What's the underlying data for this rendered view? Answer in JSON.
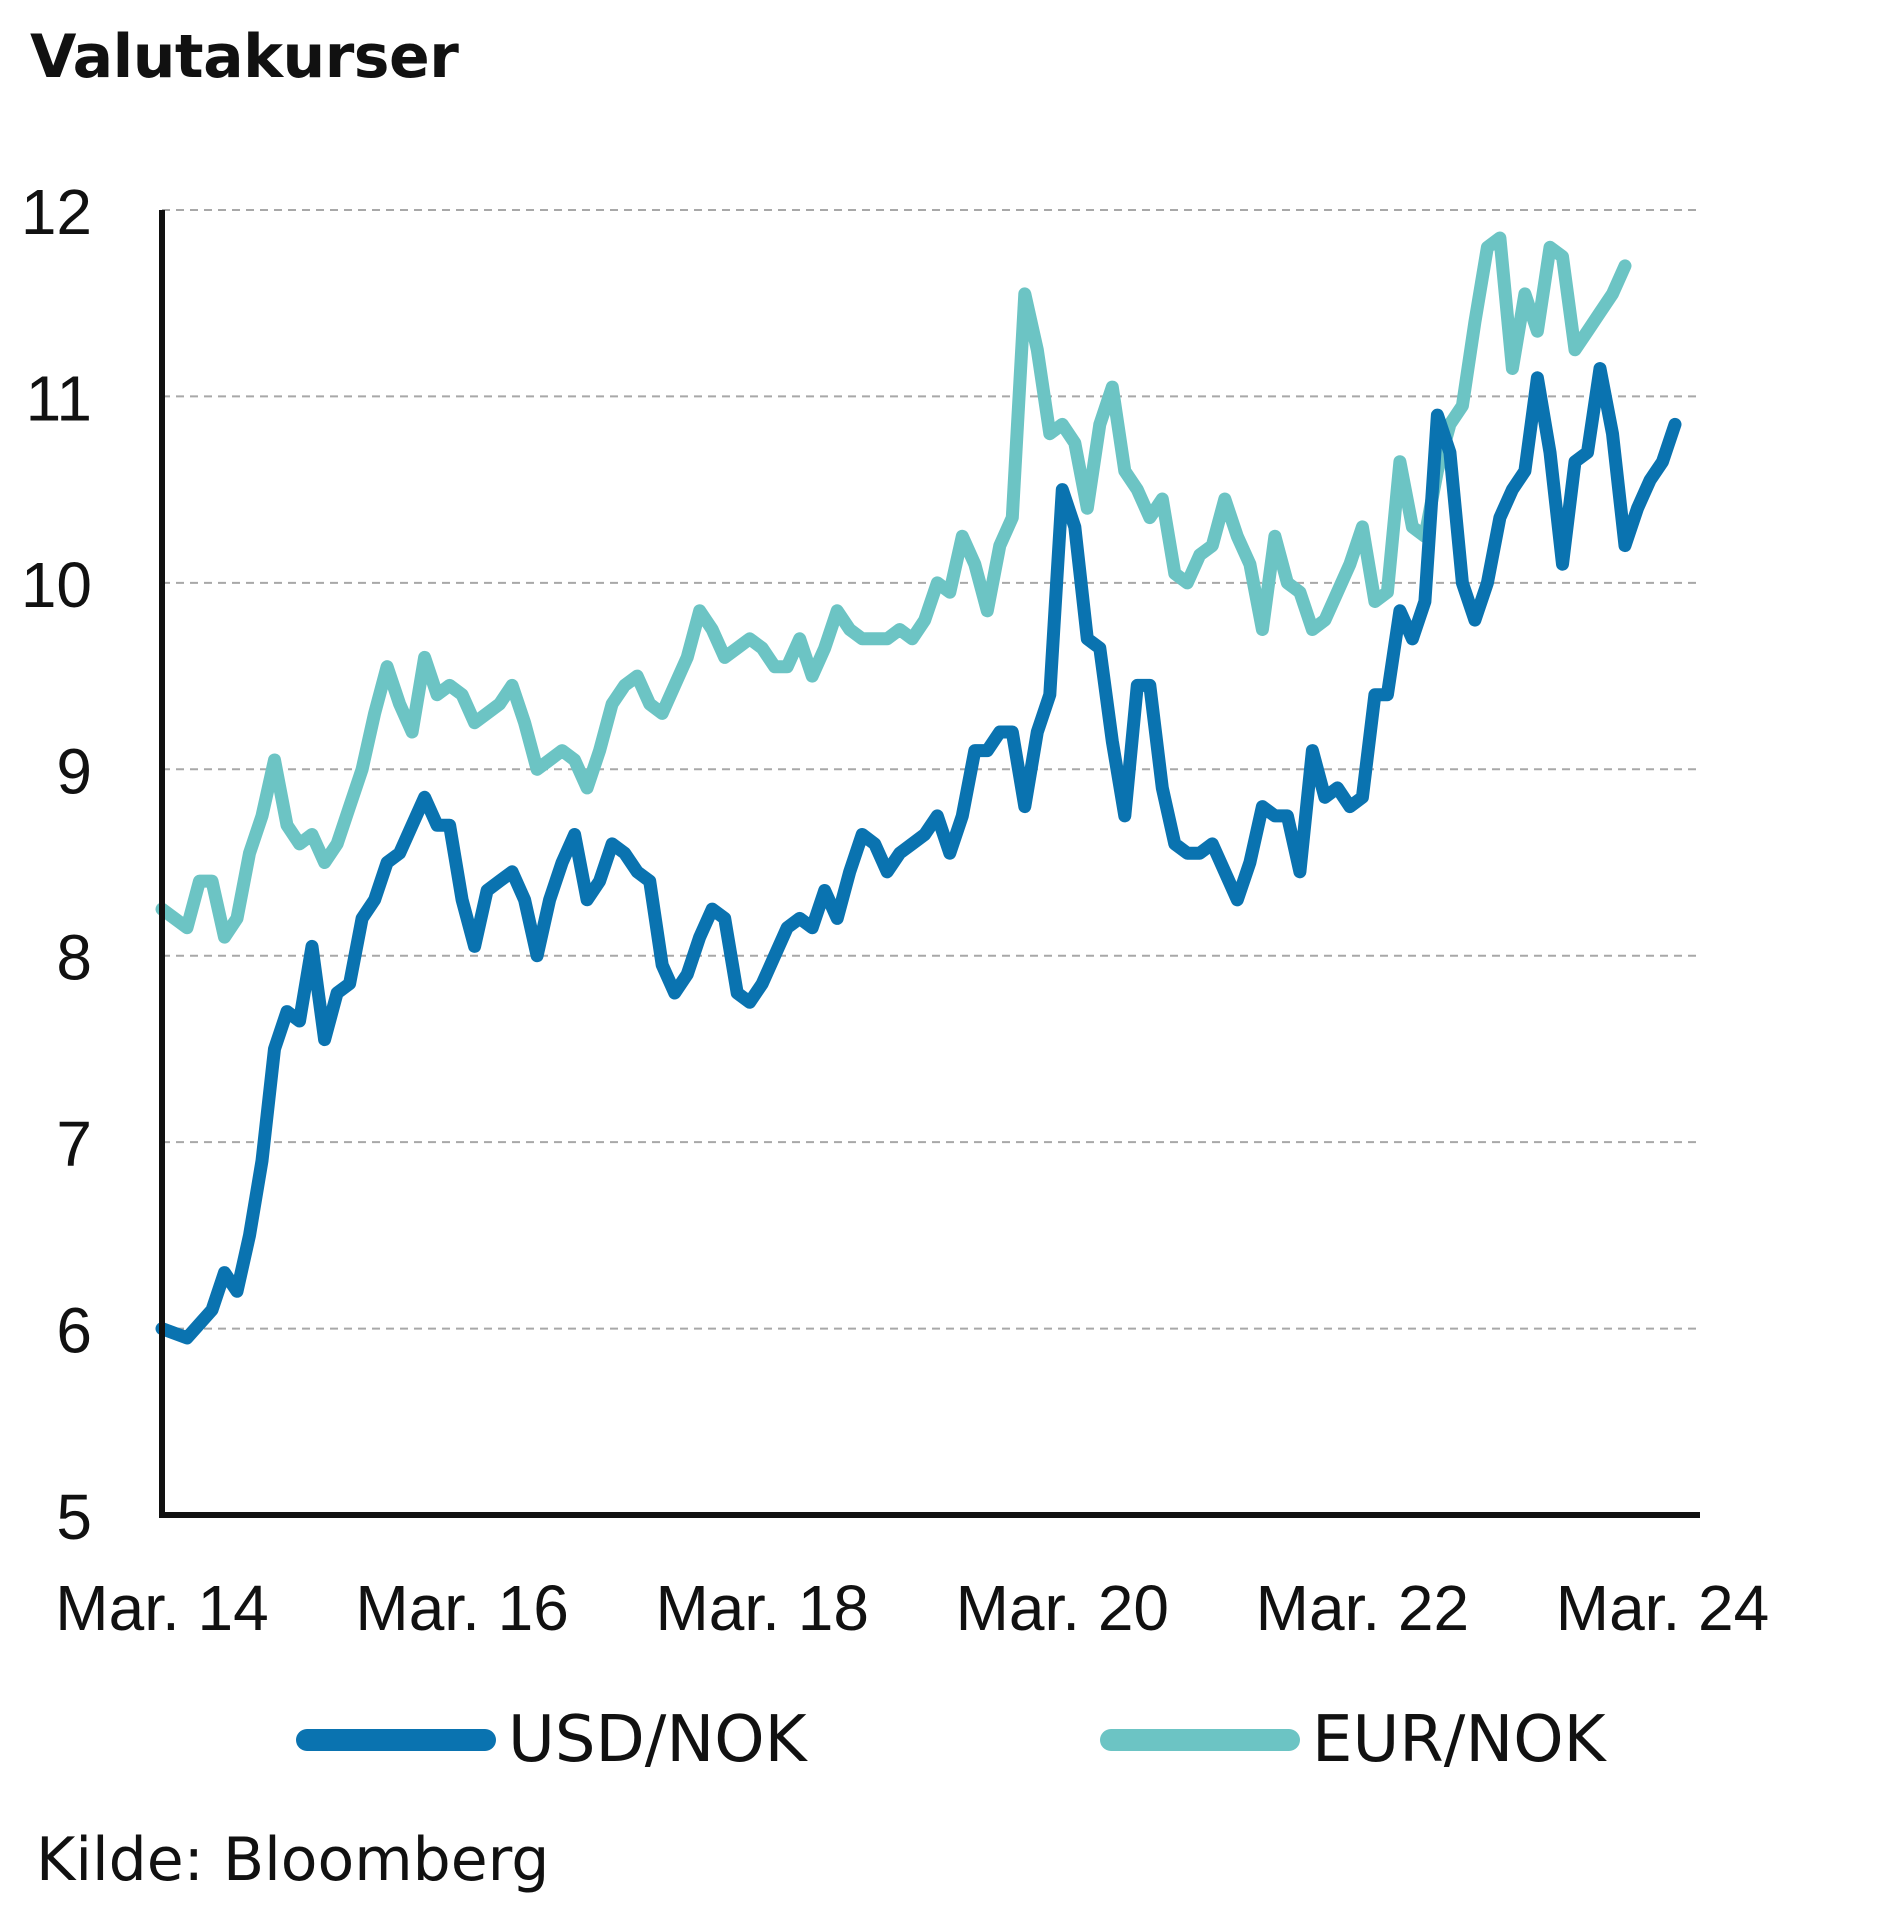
{
  "chart_data": {
    "type": "line",
    "title": "Valutakurser",
    "source": "Kilde: Bloomberg",
    "ylim": [
      5,
      12
    ],
    "yticks": [
      "5",
      "6",
      "7",
      "8",
      "9",
      "10",
      "11",
      "12"
    ],
    "xlim": [
      "2014-03",
      "2024-06"
    ],
    "xticks": [
      {
        "date": "2014-03",
        "label": "Mar. 14"
      },
      {
        "date": "2016-03",
        "label": "Mar. 16"
      },
      {
        "date": "2018-03",
        "label": "Mar. 18"
      },
      {
        "date": "2020-03",
        "label": "Mar. 20"
      },
      {
        "date": "2022-03",
        "label": "Mar. 22"
      },
      {
        "date": "2024-03",
        "label": "Mar. 24"
      }
    ],
    "grid": "horizontal dashed",
    "legend_position": "bottom",
    "series": [
      {
        "name": "USD/NOK",
        "color": "#0a73b0",
        "points": [
          [
            "2014-03",
            6.0
          ],
          [
            "2014-05",
            5.95
          ],
          [
            "2014-07",
            6.1
          ],
          [
            "2014-08",
            6.3
          ],
          [
            "2014-09",
            6.2
          ],
          [
            "2014-10",
            6.5
          ],
          [
            "2014-11",
            6.9
          ],
          [
            "2014-12",
            7.5
          ],
          [
            "2015-01",
            7.7
          ],
          [
            "2015-02",
            7.65
          ],
          [
            "2015-03",
            8.05
          ],
          [
            "2015-04",
            7.55
          ],
          [
            "2015-05",
            7.8
          ],
          [
            "2015-06",
            7.85
          ],
          [
            "2015-07",
            8.2
          ],
          [
            "2015-08",
            8.3
          ],
          [
            "2015-09",
            8.5
          ],
          [
            "2015-10",
            8.55
          ],
          [
            "2015-11",
            8.7
          ],
          [
            "2015-12",
            8.85
          ],
          [
            "2016-01",
            8.7
          ],
          [
            "2016-02",
            8.7
          ],
          [
            "2016-03",
            8.3
          ],
          [
            "2016-04",
            8.05
          ],
          [
            "2016-05",
            8.35
          ],
          [
            "2016-06",
            8.4
          ],
          [
            "2016-07",
            8.45
          ],
          [
            "2016-08",
            8.3
          ],
          [
            "2016-09",
            8.0
          ],
          [
            "2016-10",
            8.3
          ],
          [
            "2016-11",
            8.5
          ],
          [
            "2016-12",
            8.65
          ],
          [
            "2017-01",
            8.3
          ],
          [
            "2017-02",
            8.4
          ],
          [
            "2017-03",
            8.6
          ],
          [
            "2017-04",
            8.55
          ],
          [
            "2017-05",
            8.45
          ],
          [
            "2017-06",
            8.4
          ],
          [
            "2017-07",
            7.95
          ],
          [
            "2017-08",
            7.8
          ],
          [
            "2017-09",
            7.9
          ],
          [
            "2017-10",
            8.1
          ],
          [
            "2017-11",
            8.25
          ],
          [
            "2017-12",
            8.2
          ],
          [
            "2018-01",
            7.8
          ],
          [
            "2018-02",
            7.75
          ],
          [
            "2018-03",
            7.85
          ],
          [
            "2018-04",
            8.0
          ],
          [
            "2018-05",
            8.15
          ],
          [
            "2018-06",
            8.2
          ],
          [
            "2018-07",
            8.15
          ],
          [
            "2018-08",
            8.35
          ],
          [
            "2018-09",
            8.2
          ],
          [
            "2018-10",
            8.45
          ],
          [
            "2018-11",
            8.65
          ],
          [
            "2018-12",
            8.6
          ],
          [
            "2019-01",
            8.45
          ],
          [
            "2019-02",
            8.55
          ],
          [
            "2019-03",
            8.6
          ],
          [
            "2019-04",
            8.65
          ],
          [
            "2019-05",
            8.75
          ],
          [
            "2019-06",
            8.55
          ],
          [
            "2019-07",
            8.75
          ],
          [
            "2019-08",
            9.1
          ],
          [
            "2019-09",
            9.1
          ],
          [
            "2019-10",
            9.2
          ],
          [
            "2019-11",
            9.2
          ],
          [
            "2019-12",
            8.8
          ],
          [
            "2020-01",
            9.2
          ],
          [
            "2020-02",
            9.4
          ],
          [
            "2020-03",
            10.5
          ],
          [
            "2020-04",
            10.3
          ],
          [
            "2020-05",
            9.7
          ],
          [
            "2020-06",
            9.65
          ],
          [
            "2020-07",
            9.15
          ],
          [
            "2020-08",
            8.75
          ],
          [
            "2020-09",
            9.45
          ],
          [
            "2020-10",
            9.45
          ],
          [
            "2020-11",
            8.9
          ],
          [
            "2020-12",
            8.6
          ],
          [
            "2021-01",
            8.55
          ],
          [
            "2021-02",
            8.55
          ],
          [
            "2021-03",
            8.6
          ],
          [
            "2021-04",
            8.45
          ],
          [
            "2021-05",
            8.3
          ],
          [
            "2021-06",
            8.5
          ],
          [
            "2021-07",
            8.8
          ],
          [
            "2021-08",
            8.75
          ],
          [
            "2021-09",
            8.75
          ],
          [
            "2021-10",
            8.45
          ],
          [
            "2021-11",
            9.1
          ],
          [
            "2021-12",
            8.85
          ],
          [
            "2022-01",
            8.9
          ],
          [
            "2022-02",
            8.8
          ],
          [
            "2022-03",
            8.85
          ],
          [
            "2022-04",
            9.4
          ],
          [
            "2022-05",
            9.4
          ],
          [
            "2022-06",
            9.85
          ],
          [
            "2022-07",
            9.7
          ],
          [
            "2022-08",
            9.9
          ],
          [
            "2022-09",
            10.9
          ],
          [
            "2022-10",
            10.7
          ],
          [
            "2022-11",
            10.0
          ],
          [
            "2022-12",
            9.8
          ],
          [
            "2023-01",
            10.0
          ],
          [
            "2023-02",
            10.35
          ],
          [
            "2023-03",
            10.5
          ],
          [
            "2023-04",
            10.6
          ],
          [
            "2023-05",
            11.1
          ],
          [
            "2023-06",
            10.7
          ],
          [
            "2023-07",
            10.1
          ],
          [
            "2023-08",
            10.65
          ],
          [
            "2023-09",
            10.7
          ],
          [
            "2023-10",
            11.15
          ],
          [
            "2023-11",
            10.8
          ],
          [
            "2023-12",
            10.2
          ],
          [
            "2024-01",
            10.4
          ],
          [
            "2024-02",
            10.55
          ],
          [
            "2024-03",
            10.65
          ],
          [
            "2024-04",
            10.85
          ]
        ]
      },
      {
        "name": "EUR/NOK",
        "color": "#6cc4c4",
        "points": [
          [
            "2014-03",
            8.25
          ],
          [
            "2014-04",
            8.2
          ],
          [
            "2014-05",
            8.15
          ],
          [
            "2014-06",
            8.4
          ],
          [
            "2014-07",
            8.4
          ],
          [
            "2014-08",
            8.1
          ],
          [
            "2014-09",
            8.2
          ],
          [
            "2014-10",
            8.55
          ],
          [
            "2014-11",
            8.75
          ],
          [
            "2014-12",
            9.05
          ],
          [
            "2015-01",
            8.7
          ],
          [
            "2015-02",
            8.6
          ],
          [
            "2015-03",
            8.65
          ],
          [
            "2015-04",
            8.5
          ],
          [
            "2015-05",
            8.6
          ],
          [
            "2015-06",
            8.8
          ],
          [
            "2015-07",
            9.0
          ],
          [
            "2015-08",
            9.3
          ],
          [
            "2015-09",
            9.55
          ],
          [
            "2015-10",
            9.35
          ],
          [
            "2015-11",
            9.2
          ],
          [
            "2015-12",
            9.6
          ],
          [
            "2016-01",
            9.4
          ],
          [
            "2016-02",
            9.45
          ],
          [
            "2016-03",
            9.4
          ],
          [
            "2016-04",
            9.25
          ],
          [
            "2016-05",
            9.3
          ],
          [
            "2016-06",
            9.35
          ],
          [
            "2016-07",
            9.45
          ],
          [
            "2016-08",
            9.25
          ],
          [
            "2016-09",
            9.0
          ],
          [
            "2016-10",
            9.05
          ],
          [
            "2016-11",
            9.1
          ],
          [
            "2016-12",
            9.05
          ],
          [
            "2017-01",
            8.9
          ],
          [
            "2017-02",
            9.1
          ],
          [
            "2017-03",
            9.35
          ],
          [
            "2017-04",
            9.45
          ],
          [
            "2017-05",
            9.5
          ],
          [
            "2017-06",
            9.35
          ],
          [
            "2017-07",
            9.3
          ],
          [
            "2017-08",
            9.45
          ],
          [
            "2017-09",
            9.6
          ],
          [
            "2017-10",
            9.85
          ],
          [
            "2017-11",
            9.75
          ],
          [
            "2017-12",
            9.6
          ],
          [
            "2018-01",
            9.65
          ],
          [
            "2018-02",
            9.7
          ],
          [
            "2018-03",
            9.65
          ],
          [
            "2018-04",
            9.55
          ],
          [
            "2018-05",
            9.55
          ],
          [
            "2018-06",
            9.7
          ],
          [
            "2018-07",
            9.5
          ],
          [
            "2018-08",
            9.65
          ],
          [
            "2018-09",
            9.85
          ],
          [
            "2018-10",
            9.75
          ],
          [
            "2018-11",
            9.7
          ],
          [
            "2018-12",
            9.7
          ],
          [
            "2019-01",
            9.7
          ],
          [
            "2019-02",
            9.75
          ],
          [
            "2019-03",
            9.7
          ],
          [
            "2019-04",
            9.8
          ],
          [
            "2019-05",
            10.0
          ],
          [
            "2019-06",
            9.95
          ],
          [
            "2019-07",
            10.25
          ],
          [
            "2019-08",
            10.1
          ],
          [
            "2019-09",
            9.85
          ],
          [
            "2019-10",
            10.2
          ],
          [
            "2019-11",
            10.35
          ],
          [
            "2019-12",
            11.55
          ],
          [
            "2020-01",
            11.25
          ],
          [
            "2020-02",
            10.8
          ],
          [
            "2020-03",
            10.85
          ],
          [
            "2020-04",
            10.75
          ],
          [
            "2020-05",
            10.4
          ],
          [
            "2020-06",
            10.85
          ],
          [
            "2020-07",
            11.05
          ],
          [
            "2020-08",
            10.6
          ],
          [
            "2020-09",
            10.5
          ],
          [
            "2020-10",
            10.35
          ],
          [
            "2020-11",
            10.45
          ],
          [
            "2020-12",
            10.05
          ],
          [
            "2021-01",
            10.0
          ],
          [
            "2021-02",
            10.15
          ],
          [
            "2021-03",
            10.2
          ],
          [
            "2021-04",
            10.45
          ],
          [
            "2021-05",
            10.25
          ],
          [
            "2021-06",
            10.1
          ],
          [
            "2021-07",
            9.75
          ],
          [
            "2021-08",
            10.25
          ],
          [
            "2021-09",
            10.0
          ],
          [
            "2021-10",
            9.95
          ],
          [
            "2021-11",
            9.75
          ],
          [
            "2021-12",
            9.8
          ],
          [
            "2022-01",
            9.95
          ],
          [
            "2022-02",
            10.1
          ],
          [
            "2022-03",
            10.3
          ],
          [
            "2022-04",
            9.9
          ],
          [
            "2022-05",
            9.95
          ],
          [
            "2022-06",
            10.65
          ],
          [
            "2022-07",
            10.3
          ],
          [
            "2022-08",
            10.25
          ],
          [
            "2022-09",
            10.6
          ],
          [
            "2022-10",
            10.85
          ],
          [
            "2022-11",
            10.95
          ],
          [
            "2022-12",
            11.4
          ],
          [
            "2023-01",
            11.8
          ],
          [
            "2023-02",
            11.85
          ],
          [
            "2023-03",
            11.15
          ],
          [
            "2023-04",
            11.55
          ],
          [
            "2023-05",
            11.35
          ],
          [
            "2023-06",
            11.8
          ],
          [
            "2023-07",
            11.75
          ],
          [
            "2023-08",
            11.25
          ],
          [
            "2023-09",
            11.35
          ],
          [
            "2023-10",
            11.45
          ],
          [
            "2023-11",
            11.55
          ],
          [
            "2023-12",
            11.7
          ]
        ]
      }
    ]
  }
}
